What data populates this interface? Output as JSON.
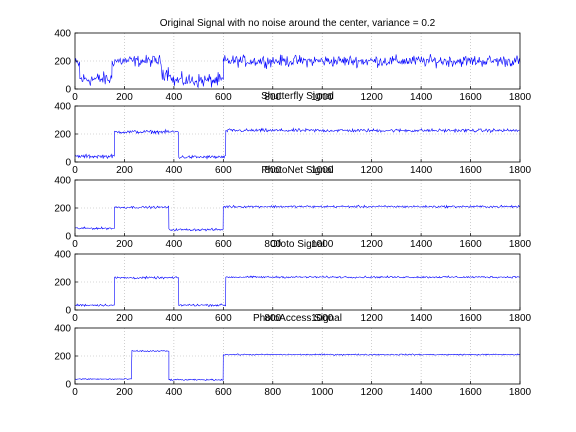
{
  "colors": {
    "signal": "#0000ff",
    "axes": "#000000",
    "grid": "#b0b0b0",
    "background": "#ffffff"
  },
  "chart_data": [
    {
      "type": "line",
      "title": "Original Signal with no noise around the center, variance = 0.2",
      "xlim": [
        0,
        1800
      ],
      "ylim": [
        0,
        400
      ],
      "xticks": [
        0,
        200,
        400,
        600,
        800,
        1000,
        1200,
        1400,
        1600,
        1800
      ],
      "yticks": [
        0,
        200,
        400
      ],
      "grid": true,
      "segments": [
        {
          "x": [
            0,
            20
          ],
          "level": 180,
          "noise": 70
        },
        {
          "x": [
            20,
            150
          ],
          "level": 70,
          "noise": 75
        },
        {
          "x": [
            150,
            350
          ],
          "level": 200,
          "noise": 60
        },
        {
          "x": [
            350,
            390
          ],
          "level": 120,
          "noise": 80
        },
        {
          "x": [
            390,
            600
          ],
          "level": 60,
          "noise": 75
        },
        {
          "x": [
            600,
            1800
          ],
          "level": 200,
          "noise": 60
        }
      ]
    },
    {
      "type": "line",
      "title": "Shutterfly Signal",
      "xlim": [
        0,
        1800
      ],
      "ylim": [
        0,
        400
      ],
      "xticks": [
        0,
        200,
        400,
        600,
        800,
        1000,
        1200,
        1400,
        1600,
        1800
      ],
      "yticks": [
        0,
        200,
        400
      ],
      "grid": true,
      "segments": [
        {
          "x": [
            0,
            160
          ],
          "level": 40,
          "noise": 20
        },
        {
          "x": [
            160,
            420
          ],
          "level": 215,
          "noise": 18
        },
        {
          "x": [
            420,
            610
          ],
          "level": 35,
          "noise": 18
        },
        {
          "x": [
            610,
            1800
          ],
          "level": 225,
          "noise": 18
        }
      ]
    },
    {
      "type": "line",
      "title": "PhotoNet Signal",
      "xlim": [
        0,
        1800
      ],
      "ylim": [
        0,
        400
      ],
      "xticks": [
        0,
        200,
        400,
        600,
        800,
        1000,
        1200,
        1400,
        1600,
        1800
      ],
      "yticks": [
        0,
        200,
        400
      ],
      "grid": true,
      "segments": [
        {
          "x": [
            0,
            160
          ],
          "level": 55,
          "noise": 12
        },
        {
          "x": [
            160,
            380
          ],
          "level": 205,
          "noise": 12
        },
        {
          "x": [
            380,
            600
          ],
          "level": 45,
          "noise": 12
        },
        {
          "x": [
            600,
            1800
          ],
          "level": 210,
          "noise": 12
        }
      ]
    },
    {
      "type": "line",
      "title": "Ofoto Signal",
      "xlim": [
        0,
        1800
      ],
      "ylim": [
        0,
        400
      ],
      "xticks": [
        0,
        200,
        400,
        600,
        800,
        1000,
        1200,
        1400,
        1600,
        1800
      ],
      "yticks": [
        0,
        200,
        400
      ],
      "grid": true,
      "segments": [
        {
          "x": [
            0,
            160
          ],
          "level": 35,
          "noise": 12
        },
        {
          "x": [
            160,
            420
          ],
          "level": 230,
          "noise": 12
        },
        {
          "x": [
            420,
            610
          ],
          "level": 35,
          "noise": 12
        },
        {
          "x": [
            610,
            1800
          ],
          "level": 235,
          "noise": 10
        }
      ]
    },
    {
      "type": "line",
      "title": "PhotoAccess Signal",
      "xlim": [
        0,
        1800
      ],
      "ylim": [
        0,
        400
      ],
      "xticks": [
        0,
        200,
        400,
        600,
        800,
        1000,
        1200,
        1400,
        1600,
        1800
      ],
      "yticks": [
        0,
        200,
        400
      ],
      "grid": true,
      "segments": [
        {
          "x": [
            0,
            230
          ],
          "level": 35,
          "noise": 7
        },
        {
          "x": [
            230,
            380
          ],
          "level": 235,
          "noise": 8
        },
        {
          "x": [
            380,
            600
          ],
          "level": 30,
          "noise": 7
        },
        {
          "x": [
            600,
            1800
          ],
          "level": 210,
          "noise": 7
        }
      ]
    }
  ]
}
